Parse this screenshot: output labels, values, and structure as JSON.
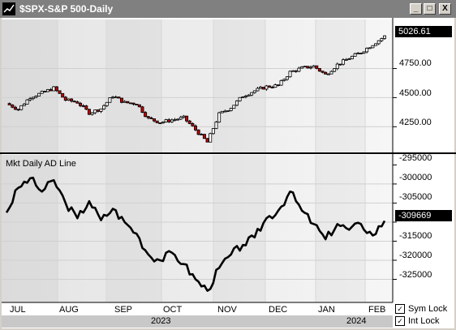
{
  "window": {
    "title": "$SPX-S&P 500-Daily",
    "buttons": [
      "_",
      "□",
      "X"
    ]
  },
  "price_panel": {
    "current_value": "5026.61",
    "y_ticks": [
      "4750.00",
      "4500.00",
      "4250.00"
    ]
  },
  "ad_panel": {
    "label": "Mkt Daily AD Line",
    "current_value": "-309669",
    "y_ticks": [
      "-295000",
      "-300000",
      "-305000",
      "-310000",
      "-315000",
      "-320000",
      "-325000"
    ]
  },
  "x_axis": {
    "months": [
      "JUL",
      "AUG",
      "SEP",
      "OCT",
      "NOV",
      "DEC",
      "JAN",
      "FEB"
    ],
    "years": [
      "2023",
      "2024"
    ]
  },
  "controls": {
    "sym_lock": {
      "label": "Sym Lock",
      "checked": true
    },
    "int_lock": {
      "label": "Int Lock",
      "checked": true
    }
  },
  "chart_data": [
    {
      "type": "candlestick",
      "title": "$SPX-S&P 500-Daily",
      "ylim": [
        4050,
        5130
      ],
      "x": [
        "2023-06-30",
        "2023-07-07",
        "2023-07-14",
        "2023-07-21",
        "2023-07-28",
        "2023-08-04",
        "2023-08-11",
        "2023-08-18",
        "2023-08-25",
        "2023-09-01",
        "2023-09-08",
        "2023-09-15",
        "2023-09-22",
        "2023-09-29",
        "2023-10-06",
        "2023-10-13",
        "2023-10-20",
        "2023-10-27",
        "2023-11-03",
        "2023-11-10",
        "2023-11-17",
        "2023-11-24",
        "2023-12-01",
        "2023-12-08",
        "2023-12-15",
        "2023-12-22",
        "2023-12-29",
        "2024-01-05",
        "2024-01-12",
        "2024-01-19",
        "2024-01-26",
        "2024-02-02",
        "2024-02-09"
      ],
      "close": [
        4450,
        4400,
        4505,
        4540,
        4582,
        4480,
        4460,
        4370,
        4405,
        4515,
        4457,
        4450,
        4320,
        4288,
        4308,
        4327,
        4224,
        4117,
        4358,
        4415,
        4514,
        4559,
        4594,
        4604,
        4719,
        4754,
        4770,
        4697,
        4783,
        4839,
        4890,
        4958,
        5026
      ],
      "up_color": "#ffffff",
      "down_color": "#c00000"
    },
    {
      "type": "line",
      "title": "Mkt Daily AD Line",
      "ylim": [
        -330000,
        -293000
      ],
      "x": [
        "2023-06-30",
        "2023-07-07",
        "2023-07-14",
        "2023-07-21",
        "2023-07-28",
        "2023-08-04",
        "2023-08-11",
        "2023-08-18",
        "2023-08-25",
        "2023-09-01",
        "2023-09-08",
        "2023-09-15",
        "2023-09-22",
        "2023-09-29",
        "2023-10-06",
        "2023-10-13",
        "2023-10-20",
        "2023-10-27",
        "2023-11-03",
        "2023-11-10",
        "2023-11-17",
        "2023-11-24",
        "2023-12-01",
        "2023-12-08",
        "2023-12-15",
        "2023-12-22",
        "2023-12-29",
        "2024-01-05",
        "2024-01-12",
        "2024-01-19",
        "2024-01-26",
        "2024-02-02",
        "2024-02-09"
      ],
      "values": [
        -307500,
        -301000,
        -298500,
        -302000,
        -299000,
        -305000,
        -309000,
        -304500,
        -309500,
        -306500,
        -310000,
        -313000,
        -318500,
        -320000,
        -318000,
        -321000,
        -325000,
        -328000,
        -322000,
        -318500,
        -316000,
        -314000,
        -309000,
        -307000,
        -302000,
        -307000,
        -310500,
        -314500,
        -310500,
        -312000,
        -310500,
        -313500,
        -309669
      ]
    }
  ]
}
